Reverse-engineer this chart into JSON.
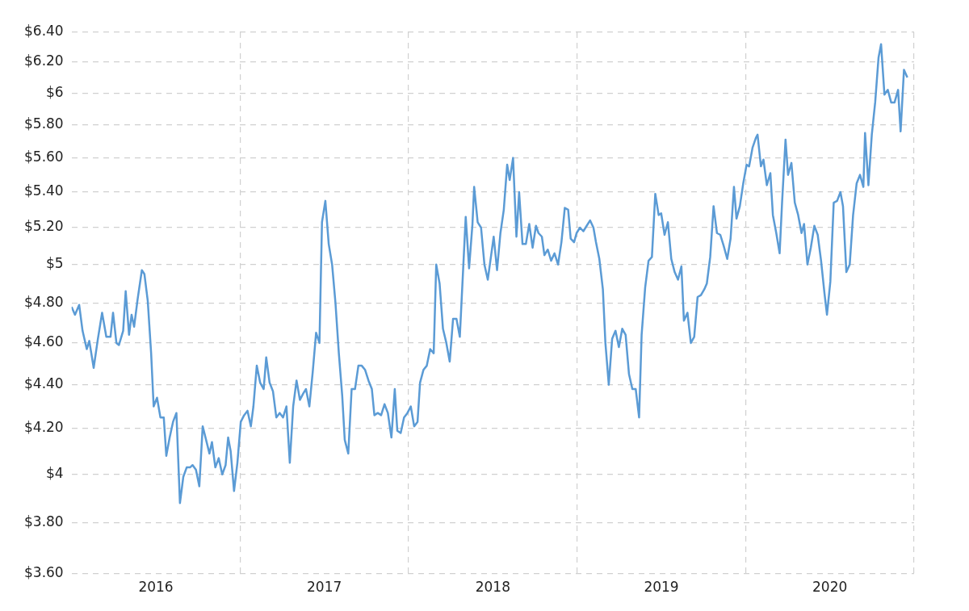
{
  "chart_data": {
    "type": "line",
    "log": "y",
    "grid": true,
    "legend": false,
    "marker": "none",
    "line_style": "solid",
    "xlim": [
      2016,
      2021
    ],
    "xticks": [
      {
        "value": 2016.5,
        "label": "2016"
      },
      {
        "value": 2017,
        "label": null
      },
      {
        "value": 2017.5,
        "label": "2017"
      },
      {
        "value": 2018,
        "label": null
      },
      {
        "value": 2018.5,
        "label": "2018"
      },
      {
        "value": 2019,
        "label": null
      },
      {
        "value": 2019.5,
        "label": "2019"
      },
      {
        "value": 2020,
        "label": null
      },
      {
        "value": 2020.5,
        "label": "2020"
      },
      {
        "value": 2021,
        "label": null
      }
    ],
    "ylim": [
      3.6,
      6.4
    ],
    "yticks": [
      {
        "value": 3.6,
        "label": "$3.60"
      },
      {
        "value": 3.8,
        "label": "$3.80"
      },
      {
        "value": 4,
        "label": "$4"
      },
      {
        "value": 4.2,
        "label": "$4.20"
      },
      {
        "value": 4.4,
        "label": "$4.40"
      },
      {
        "value": 4.6,
        "label": "$4.60"
      },
      {
        "value": 4.8,
        "label": "$4.80"
      },
      {
        "value": 5,
        "label": "$5"
      },
      {
        "value": 5.2,
        "label": "$5.20"
      },
      {
        "value": 5.4,
        "label": "$5.40"
      },
      {
        "value": 5.6,
        "label": "$5.60"
      },
      {
        "value": 5.8,
        "label": "$5.80"
      },
      {
        "value": 6,
        "label": "$6"
      },
      {
        "value": 6.2,
        "label": "$6.20"
      },
      {
        "value": 6.4,
        "label": "$6.40"
      }
    ],
    "series": [
      {
        "color": "#5b9bd5",
        "x": [
          2016.0,
          2016.02,
          2016.045,
          2016.065,
          2016.09,
          2016.105,
          2016.131,
          2016.156,
          2016.181,
          2016.206,
          2016.231,
          2016.246,
          2016.266,
          2016.281,
          2016.306,
          2016.321,
          2016.341,
          2016.356,
          2016.371,
          2016.392,
          2016.417,
          2016.432,
          2016.452,
          2016.472,
          2016.487,
          2016.507,
          2016.527,
          2016.547,
          2016.562,
          2016.582,
          2016.602,
          2016.622,
          2016.643,
          2016.663,
          2016.683,
          2016.703,
          2016.718,
          2016.738,
          2016.758,
          2016.778,
          2016.798,
          2016.818,
          2016.833,
          2016.853,
          2016.873,
          2016.894,
          2016.914,
          2016.929,
          2016.944,
          2016.964,
          2016.984,
          2017.004,
          2017.024,
          2017.044,
          2017.064,
          2017.079,
          2017.099,
          2017.119,
          2017.14,
          2017.155,
          2017.175,
          2017.195,
          2017.215,
          2017.235,
          2017.255,
          2017.275,
          2017.295,
          2017.315,
          2017.335,
          2017.355,
          2017.375,
          2017.391,
          2017.411,
          2017.431,
          2017.451,
          2017.471,
          2017.486,
          2017.506,
          2017.526,
          2017.546,
          2017.566,
          2017.586,
          2017.606,
          2017.621,
          2017.642,
          2017.662,
          2017.682,
          2017.702,
          2017.722,
          2017.742,
          2017.762,
          2017.782,
          2017.797,
          2017.817,
          2017.837,
          2017.857,
          2017.877,
          2017.898,
          2017.918,
          2017.933,
          2017.953,
          2017.973,
          2017.993,
          2018.013,
          2018.033,
          2018.053,
          2018.068,
          2018.088,
          2018.108,
          2018.128,
          2018.149,
          2018.164,
          2018.184,
          2018.204,
          2018.224,
          2018.244,
          2018.264,
          2018.284,
          2018.304,
          2018.324,
          2018.339,
          2018.359,
          2018.379,
          2018.389,
          2018.41,
          2018.43,
          2018.45,
          2018.47,
          2018.49,
          2018.505,
          2018.525,
          2018.545,
          2018.565,
          2018.585,
          2018.6,
          2018.62,
          2018.64,
          2018.656,
          2018.676,
          2018.696,
          2018.716,
          2018.736,
          2018.756,
          2018.771,
          2018.791,
          2018.806,
          2018.826,
          2018.846,
          2018.866,
          2018.887,
          2018.907,
          2018.927,
          2018.947,
          2018.962,
          2018.982,
          2018.997,
          2019.017,
          2019.037,
          2019.057,
          2019.077,
          2019.097,
          2019.112,
          2019.132,
          2019.153,
          2019.168,
          2019.188,
          2019.208,
          2019.228,
          2019.248,
          2019.268,
          2019.288,
          2019.308,
          2019.328,
          2019.348,
          2019.368,
          2019.383,
          2019.404,
          2019.424,
          2019.444,
          2019.464,
          2019.484,
          2019.499,
          2019.519,
          2019.539,
          2019.559,
          2019.579,
          2019.599,
          2019.619,
          2019.634,
          2019.655,
          2019.675,
          2019.695,
          2019.715,
          2019.735,
          2019.755,
          2019.77,
          2019.79,
          2019.81,
          2019.83,
          2019.85,
          2019.87,
          2019.891,
          2019.911,
          2019.931,
          2019.946,
          2019.966,
          2019.986,
          2020.006,
          2020.021,
          2020.041,
          2020.061,
          2020.071,
          2020.091,
          2020.106,
          2020.126,
          2020.147,
          2020.162,
          2020.182,
          2020.202,
          2020.217,
          2020.237,
          2020.252,
          2020.272,
          2020.292,
          2020.312,
          2020.332,
          2020.347,
          2020.367,
          2020.387,
          2020.408,
          2020.428,
          2020.448,
          2020.468,
          2020.483,
          2020.503,
          2020.523,
          2020.543,
          2020.563,
          2020.578,
          2020.598,
          2020.618,
          2020.638,
          2020.659,
          2020.679,
          2020.699,
          2020.709,
          2020.729,
          2020.749,
          2020.769,
          2020.789,
          2020.804,
          2020.824,
          2020.844,
          2020.864,
          2020.884,
          2020.905,
          2020.92,
          2020.94,
          2020.96
        ],
        "values": [
          4.78,
          4.74,
          4.79,
          4.66,
          4.57,
          4.61,
          4.48,
          4.62,
          4.75,
          4.63,
          4.63,
          4.75,
          4.6,
          4.59,
          4.66,
          4.86,
          4.64,
          4.74,
          4.68,
          4.82,
          4.97,
          4.95,
          4.81,
          4.55,
          4.3,
          4.34,
          4.25,
          4.25,
          4.08,
          4.16,
          4.23,
          4.27,
          3.88,
          3.99,
          4.03,
          4.03,
          4.04,
          4.02,
          3.95,
          4.21,
          4.15,
          4.09,
          4.14,
          4.03,
          4.07,
          4.0,
          4.04,
          4.16,
          4.1,
          3.93,
          4.05,
          4.23,
          4.26,
          4.28,
          4.21,
          4.3,
          4.49,
          4.41,
          4.38,
          4.53,
          4.41,
          4.37,
          4.25,
          4.27,
          4.25,
          4.3,
          4.05,
          4.3,
          4.42,
          4.33,
          4.36,
          4.38,
          4.3,
          4.46,
          4.65,
          4.6,
          5.23,
          5.35,
          5.11,
          5.0,
          4.8,
          4.55,
          4.35,
          4.15,
          4.09,
          4.38,
          4.38,
          4.49,
          4.49,
          4.47,
          4.42,
          4.38,
          4.26,
          4.27,
          4.26,
          4.31,
          4.27,
          4.16,
          4.38,
          4.19,
          4.18,
          4.25,
          4.27,
          4.3,
          4.21,
          4.23,
          4.41,
          4.47,
          4.49,
          4.57,
          4.55,
          5.0,
          4.9,
          4.67,
          4.6,
          4.51,
          4.72,
          4.72,
          4.63,
          4.98,
          5.26,
          4.98,
          5.22,
          5.43,
          5.23,
          5.2,
          5.0,
          4.92,
          5.05,
          5.15,
          4.97,
          5.17,
          5.3,
          5.56,
          5.47,
          5.6,
          5.15,
          5.4,
          5.11,
          5.11,
          5.22,
          5.09,
          5.21,
          5.17,
          5.15,
          5.05,
          5.08,
          5.02,
          5.06,
          5.0,
          5.12,
          5.31,
          5.3,
          5.14,
          5.12,
          5.17,
          5.2,
          5.18,
          5.21,
          5.24,
          5.2,
          5.12,
          5.03,
          4.87,
          4.6,
          4.4,
          4.62,
          4.66,
          4.58,
          4.67,
          4.64,
          4.45,
          4.38,
          4.38,
          4.25,
          4.64,
          4.88,
          5.02,
          5.04,
          5.39,
          5.27,
          5.28,
          5.16,
          5.23,
          5.03,
          4.96,
          4.92,
          4.99,
          4.71,
          4.75,
          4.6,
          4.63,
          4.83,
          4.84,
          4.87,
          4.9,
          5.04,
          5.32,
          5.17,
          5.16,
          5.1,
          5.03,
          5.14,
          5.43,
          5.25,
          5.32,
          5.45,
          5.56,
          5.55,
          5.66,
          5.72,
          5.74,
          5.55,
          5.59,
          5.44,
          5.51,
          5.27,
          5.17,
          5.06,
          5.35,
          5.71,
          5.5,
          5.57,
          5.34,
          5.27,
          5.17,
          5.22,
          5.0,
          5.09,
          5.21,
          5.16,
          5.02,
          4.85,
          4.74,
          4.91,
          5.34,
          5.35,
          5.4,
          5.32,
          4.96,
          5.0,
          5.27,
          5.45,
          5.5,
          5.43,
          5.75,
          5.44,
          5.74,
          5.94,
          6.23,
          6.32,
          5.99,
          6.02,
          5.94,
          5.94,
          6.02,
          5.76,
          6.15,
          6.1
        ]
      }
    ]
  }
}
